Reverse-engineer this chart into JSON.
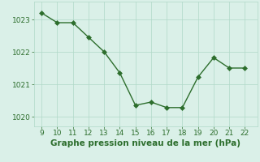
{
  "x": [
    9,
    10,
    11,
    12,
    13,
    14,
    15,
    16,
    17,
    18,
    19,
    20,
    21,
    22
  ],
  "y": [
    1023.2,
    1022.9,
    1022.9,
    1022.45,
    1022.0,
    1021.35,
    1020.35,
    1020.45,
    1020.28,
    1020.28,
    1021.22,
    1021.82,
    1021.5,
    1021.5
  ],
  "line_color": "#2d6e2d",
  "marker_color": "#2d6e2d",
  "background_color": "#daf0e8",
  "grid_color": "#b0d8c8",
  "xlabel": "Graphe pression niveau de la mer (hPa)",
  "xlabel_color": "#2d6e2d",
  "xlabel_fontsize": 7.5,
  "tick_color": "#2d6e2d",
  "tick_fontsize": 6.5,
  "ylim": [
    1019.7,
    1023.55
  ],
  "xlim": [
    8.5,
    22.8
  ],
  "yticks": [
    1020,
    1021,
    1022,
    1023
  ],
  "xticks": [
    9,
    10,
    11,
    12,
    13,
    14,
    15,
    16,
    17,
    18,
    19,
    20,
    21,
    22
  ]
}
